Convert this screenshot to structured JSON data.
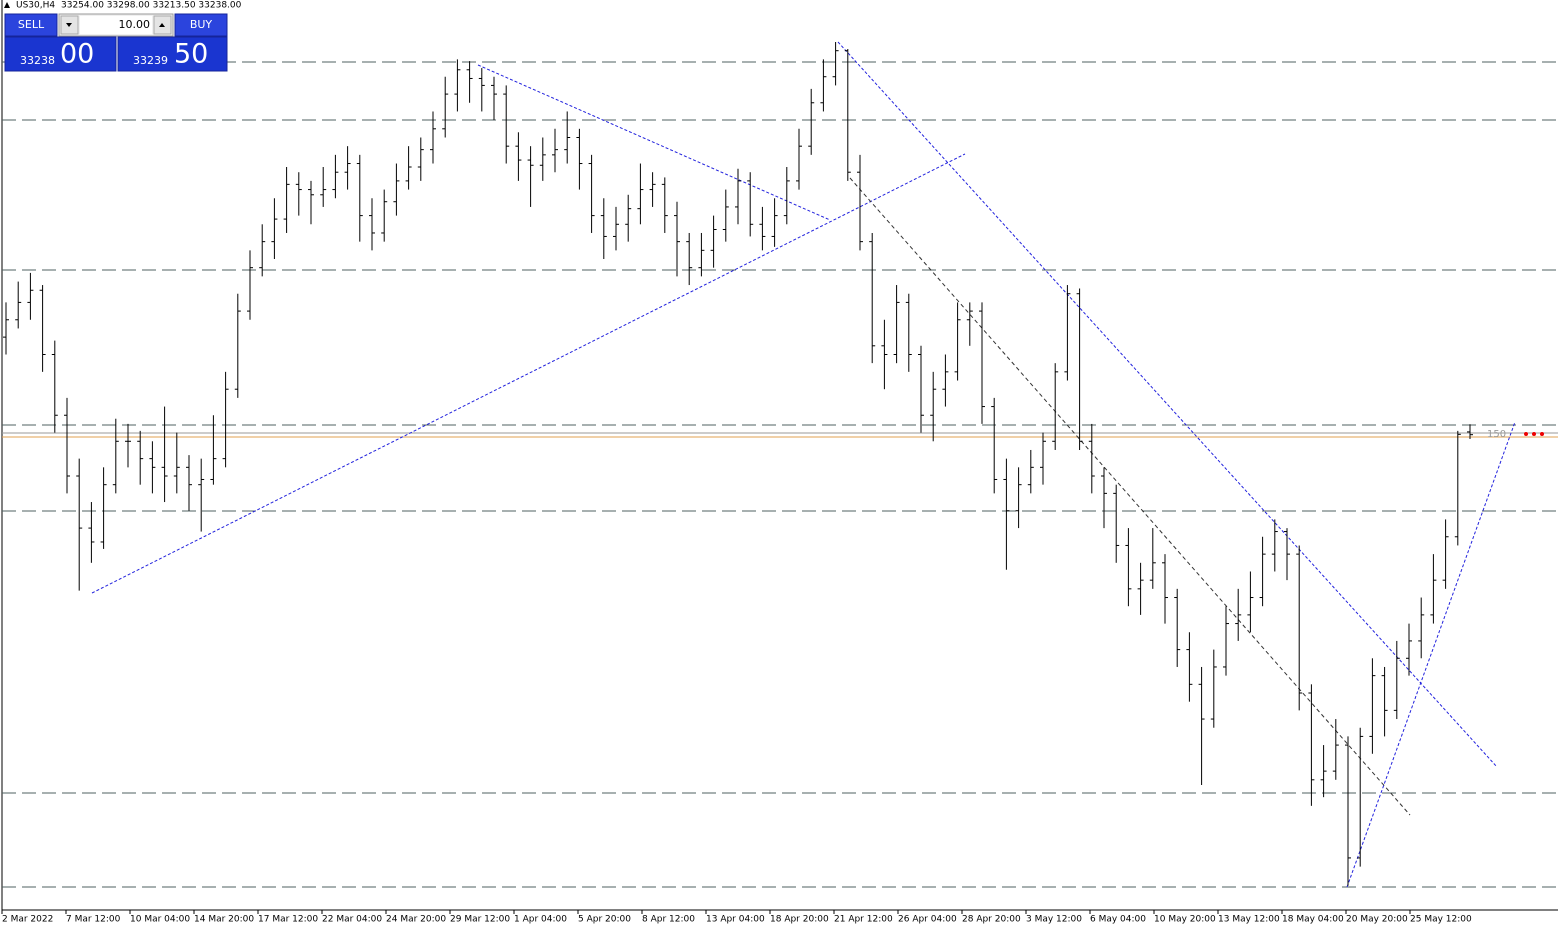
{
  "header": {
    "symbol": "US30,H4",
    "quote": "33254.00 33298.00 33213.50 33238.00"
  },
  "trade_panel": {
    "sell": "SELL",
    "buy": "BUY",
    "lot": "10.00",
    "sell_price_main": "33238",
    "sell_price_big": "00",
    "buy_price_main": "33239",
    "buy_price_big": "50"
  },
  "level_label": "150",
  "chart_data": {
    "type": "ohlc",
    "color": "#000000",
    "ylim": [
      30500,
      35742
    ],
    "categories": [
      "2 Mar 2022",
      "7 Mar 12:00",
      "10 Mar 04:00",
      "14 Mar 20:00",
      "17 Mar 12:00",
      "22 Mar 04:00",
      "24 Mar 20:00",
      "29 Mar 12:00",
      "1 Apr 04:00",
      "5 Apr 20:00",
      "8 Apr 12:00",
      "13 Apr 04:00",
      "18 Apr 20:00",
      "21 Apr 12:00",
      "26 Apr 04:00",
      "28 Apr 20:00",
      "3 May 12:00",
      "6 May 04:00",
      "10 May 20:00",
      "13 May 12:00",
      "18 May 04:00",
      "20 May 20:00",
      "25 May 12:00"
    ],
    "ohlc": [
      [
        33800,
        34000,
        33700,
        33900
      ],
      [
        33900,
        34120,
        33850,
        34000
      ],
      [
        34000,
        34170,
        33900,
        34070
      ],
      [
        34070,
        34100,
        33600,
        33700
      ],
      [
        33700,
        33780,
        33250,
        33350
      ],
      [
        33350,
        33450,
        32900,
        33000
      ],
      [
        33000,
        33100,
        32340,
        32700
      ],
      [
        32700,
        32850,
        32500,
        32620
      ],
      [
        32620,
        33050,
        32580,
        32950
      ],
      [
        32950,
        33330,
        32900,
        33200
      ],
      [
        33200,
        33300,
        33050,
        33200
      ],
      [
        33200,
        33260,
        32950,
        33100
      ],
      [
        33100,
        33200,
        32900,
        33050
      ],
      [
        33050,
        33400,
        32850,
        33000
      ],
      [
        33000,
        33250,
        32900,
        33050
      ],
      [
        33050,
        33120,
        32800,
        32950
      ],
      [
        32950,
        33100,
        32680,
        32980
      ],
      [
        32980,
        33350,
        32950,
        33100
      ],
      [
        33100,
        33600,
        33050,
        33500
      ],
      [
        33500,
        34050,
        33450,
        33950
      ],
      [
        33950,
        34300,
        33900,
        34200
      ],
      [
        34200,
        34450,
        34150,
        34350
      ],
      [
        34350,
        34600,
        34250,
        34480
      ],
      [
        34480,
        34780,
        34400,
        34680
      ],
      [
        34680,
        34750,
        34500,
        34650
      ],
      [
        34650,
        34700,
        34450,
        34620
      ],
      [
        34620,
        34780,
        34550,
        34650
      ],
      [
        34650,
        34850,
        34600,
        34750
      ],
      [
        34750,
        34900,
        34650,
        34800
      ],
      [
        34800,
        34850,
        34350,
        34500
      ],
      [
        34500,
        34600,
        34300,
        34400
      ],
      [
        34400,
        34650,
        34350,
        34580
      ],
      [
        34580,
        34800,
        34500,
        34700
      ],
      [
        34700,
        34900,
        34650,
        34780
      ],
      [
        34780,
        34950,
        34700,
        34880
      ],
      [
        34880,
        35100,
        34800,
        35000
      ],
      [
        35000,
        35300,
        34950,
        35200
      ],
      [
        35200,
        35400,
        35100,
        35340
      ],
      [
        35340,
        35390,
        35150,
        35290
      ],
      [
        35290,
        35350,
        35100,
        35250
      ],
      [
        35250,
        35300,
        35050,
        35200
      ],
      [
        35200,
        35250,
        34800,
        34900
      ],
      [
        34900,
        34980,
        34700,
        34820
      ],
      [
        34820,
        34900,
        34550,
        34790
      ],
      [
        34790,
        34950,
        34700,
        34850
      ],
      [
        34850,
        35000,
        34750,
        34880
      ],
      [
        34880,
        35100,
        34800,
        34950
      ],
      [
        34950,
        35000,
        34650,
        34800
      ],
      [
        34800,
        34850,
        34400,
        34500
      ],
      [
        34500,
        34600,
        34250,
        34380
      ],
      [
        34380,
        34550,
        34300,
        34450
      ],
      [
        34450,
        34620,
        34350,
        34540
      ],
      [
        34540,
        34800,
        34450,
        34650
      ],
      [
        34650,
        34750,
        34550,
        34680
      ],
      [
        34680,
        34720,
        34400,
        34500
      ],
      [
        34500,
        34580,
        34150,
        34350
      ],
      [
        34350,
        34400,
        34100,
        34200
      ],
      [
        34200,
        34400,
        34150,
        34300
      ],
      [
        34300,
        34500,
        34200,
        34420
      ],
      [
        34420,
        34650,
        34350,
        34550
      ],
      [
        34550,
        34770,
        34450,
        34700
      ],
      [
        34700,
        34750,
        34380,
        34450
      ],
      [
        34450,
        34550,
        34300,
        34380
      ],
      [
        34380,
        34600,
        34320,
        34500
      ],
      [
        34500,
        34780,
        34450,
        34700
      ],
      [
        34700,
        35000,
        34650,
        34900
      ],
      [
        34900,
        35230,
        34850,
        35150
      ],
      [
        35150,
        35400,
        35100,
        35300
      ],
      [
        35300,
        35500,
        35250,
        35450
      ],
      [
        35450,
        35460,
        34700,
        34750
      ],
      [
        34750,
        34850,
        34300,
        34350
      ],
      [
        34350,
        34400,
        33650,
        33750
      ],
      [
        33750,
        33900,
        33500,
        33700
      ],
      [
        33700,
        34100,
        33650,
        34000
      ],
      [
        34000,
        34050,
        33600,
        33700
      ],
      [
        33700,
        33750,
        33250,
        33350
      ],
      [
        33350,
        33600,
        33200,
        33500
      ],
      [
        33500,
        33700,
        33400,
        33600
      ],
      [
        33600,
        34000,
        33550,
        33900
      ],
      [
        33900,
        34000,
        33750,
        33950
      ],
      [
        33950,
        34000,
        33300,
        33400
      ],
      [
        33400,
        33450,
        32900,
        32980
      ],
      [
        32980,
        33100,
        32460,
        32800
      ],
      [
        32800,
        33050,
        32700,
        32950
      ],
      [
        32950,
        33150,
        32900,
        33050
      ],
      [
        33050,
        33250,
        32950,
        33200
      ],
      [
        33200,
        33650,
        33150,
        33600
      ],
      [
        33600,
        34100,
        33550,
        34050
      ],
      [
        34050,
        34080,
        33150,
        33200
      ],
      [
        33200,
        33300,
        32900,
        33000
      ],
      [
        33000,
        33050,
        32700,
        32900
      ],
      [
        32900,
        32950,
        32500,
        32600
      ],
      [
        32600,
        32700,
        32250,
        32350
      ],
      [
        32350,
        32500,
        32200,
        32400
      ],
      [
        32400,
        32700,
        32350,
        32500
      ],
      [
        32500,
        32550,
        32150,
        32300
      ],
      [
        32300,
        32350,
        31900,
        32000
      ],
      [
        32000,
        32100,
        31700,
        31800
      ],
      [
        31800,
        31900,
        31220,
        31600
      ],
      [
        31600,
        32000,
        31550,
        31900
      ],
      [
        31900,
        32250,
        31850,
        32150
      ],
      [
        32150,
        32350,
        32050,
        32200
      ],
      [
        32200,
        32450,
        32100,
        32300
      ],
      [
        32300,
        32650,
        32250,
        32550
      ],
      [
        32550,
        32750,
        32450,
        32680
      ],
      [
        32680,
        32700,
        32400,
        32550
      ],
      [
        32550,
        32600,
        31650,
        31750
      ],
      [
        31750,
        31800,
        31100,
        31250
      ],
      [
        31250,
        31450,
        31150,
        31300
      ],
      [
        31300,
        31600,
        31250,
        31450
      ],
      [
        31450,
        31500,
        30640,
        30800
      ],
      [
        30800,
        31550,
        30750,
        31500
      ],
      [
        31500,
        31950,
        31400,
        31850
      ],
      [
        31850,
        31900,
        31500,
        31650
      ],
      [
        31650,
        32050,
        31600,
        31950
      ],
      [
        31950,
        32150,
        31850,
        32050
      ],
      [
        32050,
        32300,
        31950,
        32200
      ],
      [
        32200,
        32550,
        32150,
        32400
      ],
      [
        32400,
        32750,
        32350,
        32650
      ],
      [
        32650,
        33260,
        32600,
        33240
      ],
      [
        33254,
        33298,
        33213.5,
        33238
      ]
    ]
  }
}
